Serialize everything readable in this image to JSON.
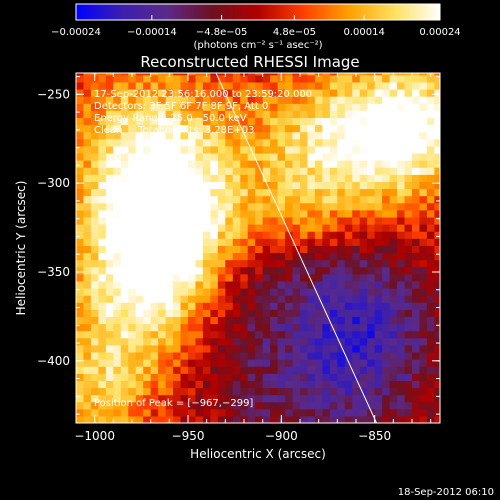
{
  "chart_data": {
    "type": "heatmap",
    "title": "Reconstructed RHESSI Image",
    "xlabel": "Heliocentric X (arcsec)",
    "ylabel": "Heliocentric Y (arcsec)",
    "xlim": [
      -1010,
      -815
    ],
    "ylim": [
      -435,
      -238
    ],
    "x_ticks": [
      -1000,
      -950,
      -900,
      -850
    ],
    "x_tick_labels": [
      "−1000",
      "−950",
      "−900",
      "−850"
    ],
    "y_ticks": [
      -250,
      -300,
      -350,
      -400
    ],
    "y_tick_labels": [
      "−250",
      "−300",
      "−350",
      "−400"
    ],
    "colorbar": {
      "min": -0.00024,
      "max": 0.00024,
      "tick_labels": [
        "−0.00024",
        "−0.00014",
        "−4.8e−05",
        "4.8e−05",
        "0.00014",
        "0.00024"
      ],
      "units_label": "(photons cm⁻² s⁻¹ asec⁻²)",
      "colors": [
        "#0000ff",
        "#3b1fb0",
        "#5a2a8a",
        "#6e1020",
        "#b00000",
        "#ff4000",
        "#ffa000",
        "#ffe060",
        "#ffffff"
      ]
    },
    "annotations": [
      "17-Sep-2012 23:56:16.000 to 23:59:20.000",
      "Detectors: 3F 5F 6F 7F 8F 9F, Att 0",
      "Energy Range: 25.0 - 50.0 keV",
      "Clean     Total counts: 3.28E+03"
    ],
    "peak_label": "Position of Peak = [−967,−299]",
    "timestamp": "18-Sep-2012 06:10",
    "limb_line": {
      "x": [
        -935,
        -849
      ],
      "y": [
        -238,
        -435
      ]
    },
    "emission_sources": [
      {
        "x": -975,
        "y": -290,
        "value": 0.0002,
        "sx": 28,
        "sy": 40
      },
      {
        "x": -955,
        "y": -330,
        "value": 0.00022,
        "sx": 22,
        "sy": 35
      },
      {
        "x": -985,
        "y": -370,
        "value": 0.00016,
        "sx": 25,
        "sy": 40
      },
      {
        "x": -1000,
        "y": -420,
        "value": 0.0001,
        "sx": 20,
        "sy": 25
      },
      {
        "x": -870,
        "y": -280,
        "value": 0.0002,
        "sx": 40,
        "sy": 30
      },
      {
        "x": -830,
        "y": -265,
        "value": 0.00018,
        "sx": 25,
        "sy": 25
      },
      {
        "x": -895,
        "y": -320,
        "value": 8e-05,
        "sx": 25,
        "sy": 18
      }
    ],
    "negative_sources": [
      {
        "x": -905,
        "y": -370,
        "value": -8e-05,
        "sx": 40,
        "sy": 40
      },
      {
        "x": -855,
        "y": -380,
        "value": -0.00014,
        "sx": 25,
        "sy": 30
      },
      {
        "x": -880,
        "y": -420,
        "value": -6e-05,
        "sx": 35,
        "sy": 20
      }
    ]
  }
}
